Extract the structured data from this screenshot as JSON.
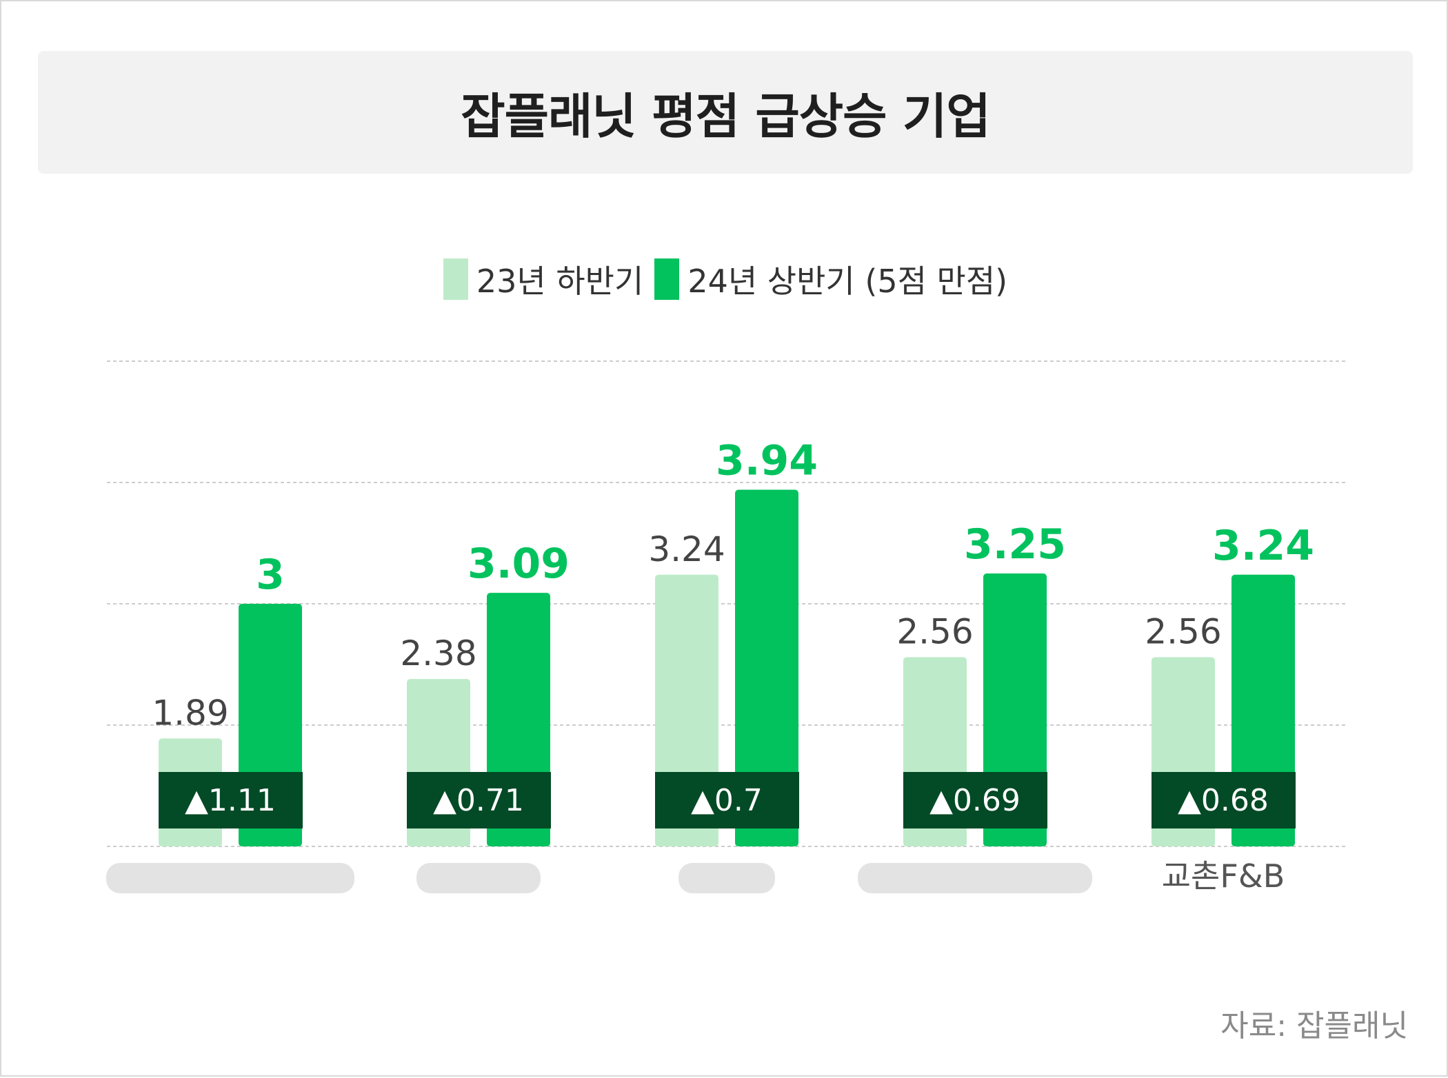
{
  "title": "잡플래닛 평점 급상승 기업",
  "source": "자료: 잡플래닛",
  "colors": {
    "prev_bar": "#bdebc9",
    "curr_bar": "#02c25e",
    "curr_label": "#02c25e",
    "prev_label": "#444444",
    "badge_bg": "#034a26",
    "badge_text": "#ffffff",
    "grid": "#bbbbbb",
    "category": "#555555"
  },
  "legend": [
    {
      "label": "23년 하반기",
      "color": "#bdebc9"
    },
    {
      "label": "24년 상반기 (5점 만점)",
      "color": "#02c25e"
    }
  ],
  "chart_data": {
    "type": "bar",
    "title": "잡플래닛 평점 급상승 기업",
    "xlabel": "",
    "ylabel": "",
    "ylim": [
      1,
      5
    ],
    "grid": true,
    "legend_position": "top-center",
    "categories": [
      "",
      "",
      "",
      "",
      "교촌F&B"
    ],
    "series": [
      {
        "name": "23년 하반기",
        "values": [
          1.89,
          2.38,
          3.24,
          2.56,
          2.56
        ]
      },
      {
        "name": "24년 상반기 (5점 만점)",
        "values": [
          3,
          3.09,
          3.94,
          3.25,
          3.24
        ]
      }
    ],
    "value_labels_prev": [
      "1.89",
      "2.38",
      "3.24",
      "2.56",
      "2.56"
    ],
    "value_labels_curr": [
      "3",
      "3.09",
      "3.94",
      "3.25",
      "3.24"
    ],
    "changes": [
      "▲1.11",
      "▲0.71",
      "▲0.7",
      "▲0.69",
      "▲0.68"
    ]
  }
}
